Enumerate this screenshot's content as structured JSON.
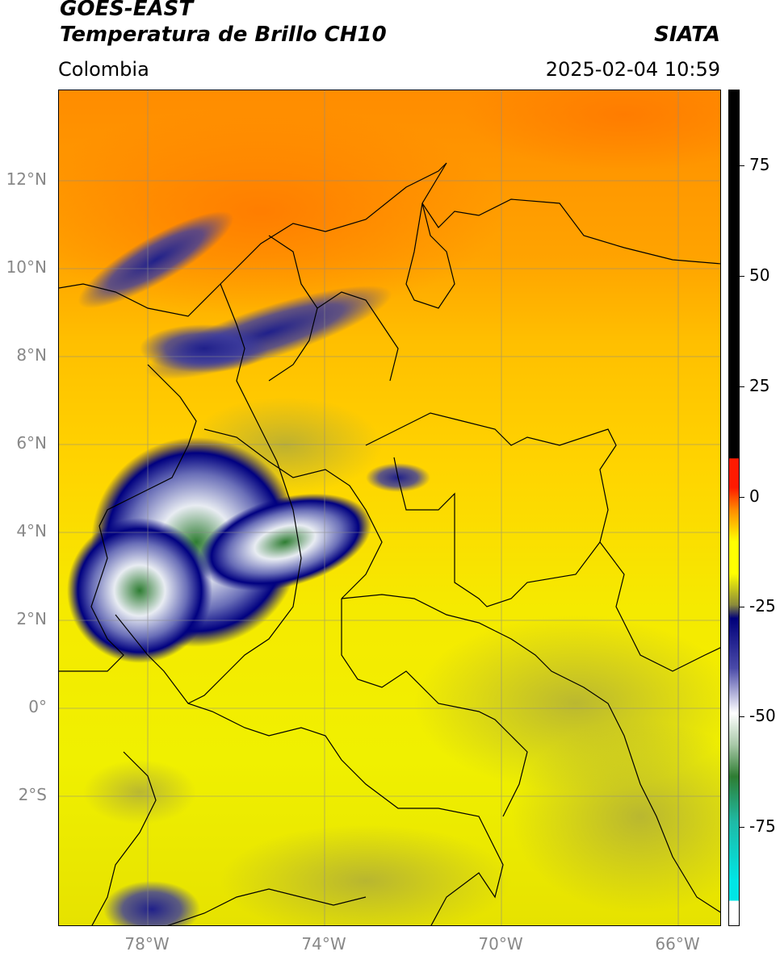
{
  "header": {
    "line1": "GOES-EAST",
    "line2": "Temperatura de Brillo CH10",
    "region": "Colombia",
    "source": "SIATA",
    "datetime": "2025-02-04 10:59"
  },
  "map": {
    "lat_range": [
      -5,
      14
    ],
    "lon_range": [
      -80,
      -65
    ],
    "lat_ticks": [
      "12°N",
      "10°N",
      "8°N",
      "6°N",
      "4°N",
      "2°N",
      "0°",
      "2°S"
    ],
    "lon_ticks": [
      "78°W",
      "74°W",
      "70°W",
      "66°W"
    ],
    "gridlines": true
  },
  "colorbar": {
    "range": [
      -95,
      90
    ],
    "ticks": [
      "75",
      "50",
      "25",
      "0",
      "-25",
      "-50",
      "-75"
    ],
    "colors": {
      "black": "#000000",
      "red": "#ff1a00",
      "orange": "#ff8c00",
      "yellow": "#ffff00",
      "olive": "#8a8a3a",
      "navy": "#00007a",
      "white": "#ffffff",
      "green": "#2e7d32",
      "teal": "#1fb9a5",
      "cyan": "#00e5e5"
    }
  }
}
